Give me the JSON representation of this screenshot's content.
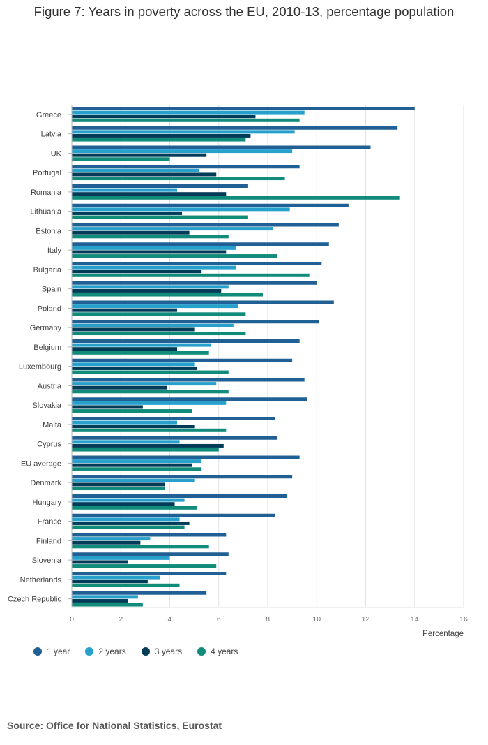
{
  "title": "Figure 7: Years in poverty across the EU, 2010-13, percentage population",
  "source": "Source: Office for National Statistics, Eurostat",
  "colors": [
    "#206095",
    "#27a0cc",
    "#003c57",
    "#118c7b"
  ],
  "chart_data": {
    "type": "bar",
    "orientation": "horizontal",
    "xlabel": "Percentage",
    "xlim": [
      0,
      16
    ],
    "xticks": [
      0,
      2,
      4,
      6,
      8,
      10,
      12,
      14,
      16
    ],
    "grid": true,
    "legend_position": "bottom-left",
    "categories": [
      "Greece",
      "Latvia",
      "UK",
      "Portugal",
      "Romania",
      "Lithuania",
      "Estonia",
      "Italy",
      "Bulgaria",
      "Spain",
      "Poland",
      "Germany",
      "Belgium",
      "Luxembourg",
      "Austria",
      "Slovakia",
      "Malta",
      "Cyprus",
      "EU average",
      "Denmark",
      "Hungary",
      "France",
      "Finland",
      "Slovenia",
      "Netherlands",
      "Czech Republic"
    ],
    "series": [
      {
        "name": "1 year",
        "values": [
          14.0,
          13.3,
          12.2,
          9.3,
          7.2,
          11.3,
          10.9,
          10.5,
          10.2,
          10.0,
          10.7,
          10.1,
          9.3,
          9.0,
          9.5,
          9.6,
          8.3,
          8.4,
          9.3,
          9.0,
          8.8,
          8.3,
          6.3,
          6.4,
          6.3,
          5.5
        ]
      },
      {
        "name": "2 years",
        "values": [
          9.5,
          9.1,
          9.0,
          5.2,
          4.3,
          8.9,
          8.2,
          6.7,
          6.7,
          6.4,
          6.8,
          6.6,
          5.7,
          5.0,
          5.9,
          6.3,
          4.3,
          4.4,
          5.3,
          5.0,
          4.6,
          4.4,
          3.2,
          4.0,
          3.6,
          2.7
        ]
      },
      {
        "name": "3 years",
        "values": [
          7.5,
          7.3,
          5.5,
          5.9,
          6.3,
          4.5,
          4.8,
          6.3,
          5.3,
          6.1,
          4.3,
          5.0,
          4.3,
          5.1,
          3.9,
          2.9,
          5.0,
          6.2,
          4.9,
          3.8,
          4.2,
          4.8,
          2.8,
          2.3,
          3.1,
          2.3
        ]
      },
      {
        "name": "4 years",
        "values": [
          9.3,
          7.1,
          4.0,
          8.7,
          13.4,
          7.2,
          6.4,
          8.4,
          9.7,
          7.8,
          7.1,
          7.1,
          5.6,
          6.4,
          6.4,
          4.9,
          6.3,
          6.0,
          5.3,
          3.8,
          5.1,
          4.6,
          5.6,
          5.9,
          4.4,
          2.9
        ]
      }
    ]
  }
}
